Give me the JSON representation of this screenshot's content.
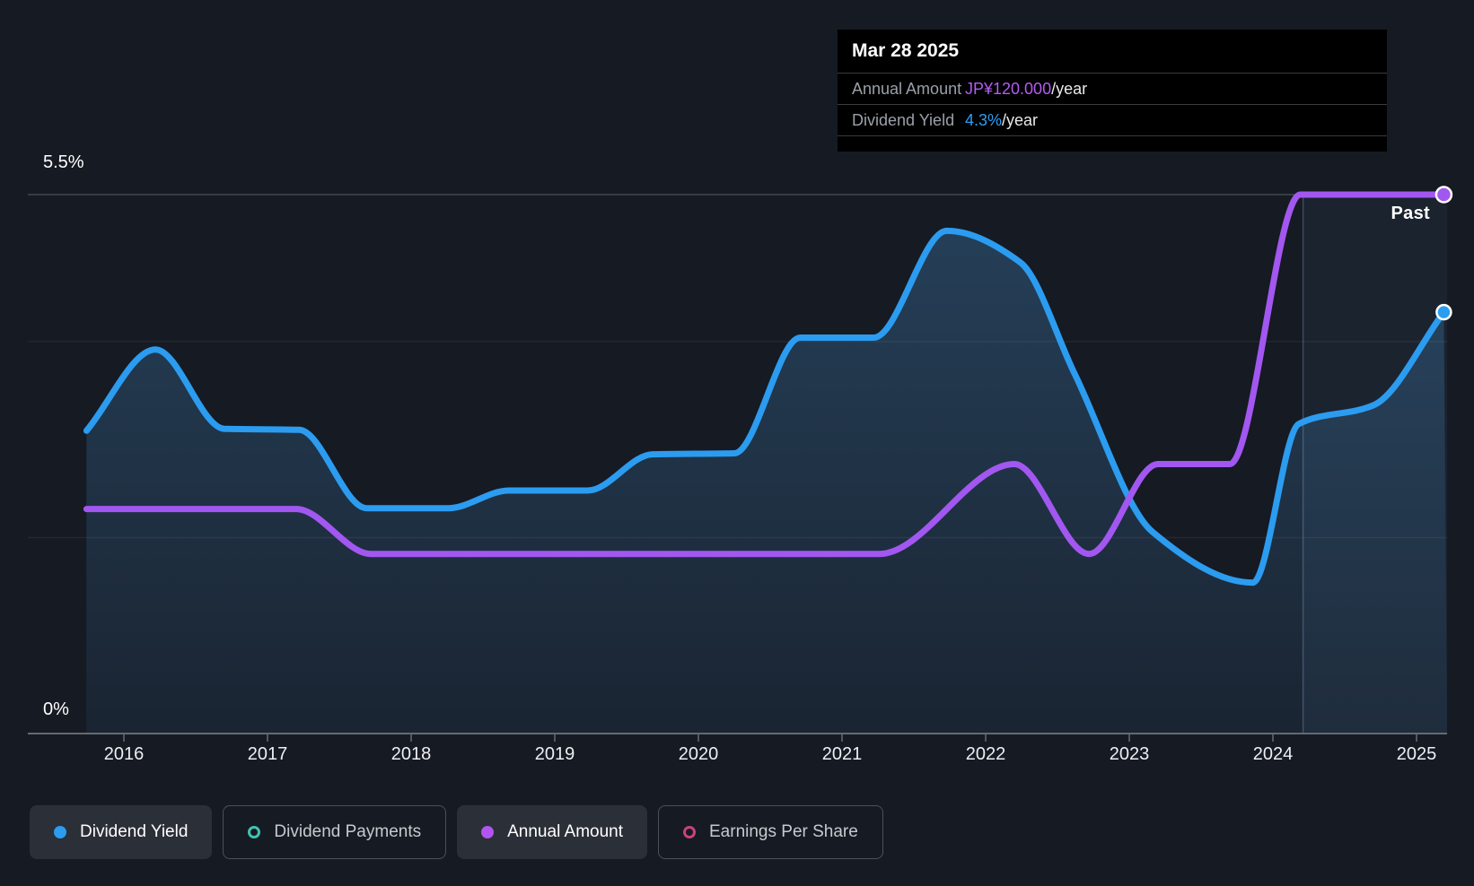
{
  "y_axis": {
    "top_label": "5.5%",
    "bottom_label": "0%"
  },
  "x_axis": {
    "years": [
      "2016",
      "2017",
      "2018",
      "2019",
      "2020",
      "2021",
      "2022",
      "2023",
      "2024",
      "2025"
    ]
  },
  "past_label": "Past",
  "tooltip": {
    "date": "Mar 28 2025",
    "rows": [
      {
        "label": "Annual Amount",
        "value": "JP¥120.000",
        "suffix": "/year",
        "color": "#b35cf2"
      },
      {
        "label": "Dividend Yield",
        "value": "4.3%",
        "suffix": "/year",
        "color": "#2f9df2"
      }
    ]
  },
  "legend": [
    {
      "label": "Dividend Yield",
      "marker": "dot",
      "color": "#2b9cf0",
      "active": true
    },
    {
      "label": "Dividend Payments",
      "marker": "ring",
      "color": "#41c2ae",
      "active": false
    },
    {
      "label": "Annual Amount",
      "marker": "dot",
      "color": "#b254f2",
      "active": true
    },
    {
      "label": "Earnings Per Share",
      "marker": "ring",
      "color": "#c9417f",
      "active": false
    }
  ],
  "chart_data": {
    "type": "area",
    "title": "Dividend history",
    "x_range": [
      2015.74,
      2025.21
    ],
    "past_divider_year": 2024.21,
    "gridlines_pct": [
      5.5,
      4,
      2,
      0
    ],
    "ylim_pct": [
      0,
      5.5
    ],
    "ylim_amount": [
      0,
      120
    ],
    "series": [
      {
        "name": "Dividend Yield",
        "unit": "%",
        "color": "#2b9cf0",
        "fill": true,
        "points": [
          [
            2015.74,
            3.09
          ],
          [
            2016.22,
            3.92
          ],
          [
            2016.7,
            3.11
          ],
          [
            2017.22,
            3.1
          ],
          [
            2017.69,
            2.3
          ],
          [
            2018.26,
            2.3
          ],
          [
            2018.68,
            2.48
          ],
          [
            2019.23,
            2.48
          ],
          [
            2019.68,
            2.85
          ],
          [
            2020.25,
            2.86
          ],
          [
            2020.71,
            4.04
          ],
          [
            2021.22,
            4.04
          ],
          [
            2021.73,
            5.13
          ],
          [
            2022.24,
            4.81
          ],
          [
            2022.62,
            3.67
          ],
          [
            2023.16,
            2.06
          ],
          [
            2023.86,
            1.54
          ],
          [
            2024.18,
            3.16
          ],
          [
            2024.7,
            3.35
          ],
          [
            2025.19,
            4.3
          ]
        ]
      },
      {
        "name": "Annual Amount",
        "unit": "JP¥/year",
        "color": "#a257f0",
        "fill": false,
        "points": [
          [
            2015.74,
            50
          ],
          [
            2017.2,
            50
          ],
          [
            2017.72,
            40
          ],
          [
            2021.26,
            40
          ],
          [
            2022.2,
            60
          ],
          [
            2022.72,
            40
          ],
          [
            2023.2,
            60
          ],
          [
            2023.7,
            60
          ],
          [
            2024.19,
            120
          ],
          [
            2025.19,
            120
          ]
        ]
      }
    ]
  }
}
